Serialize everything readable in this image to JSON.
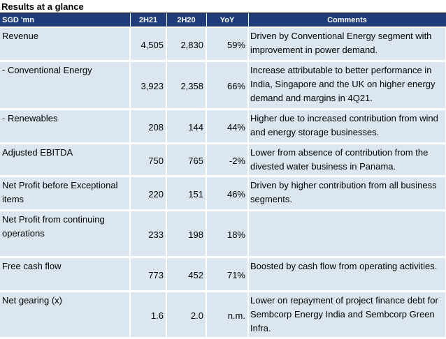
{
  "title": "Results at a glance",
  "headers": [
    "SGD 'mn",
    "2H21",
    "2H20",
    "YoY",
    "Comments"
  ],
  "rows": [
    {
      "metric": "Revenue",
      "v2h21": "4,505",
      "v2h20": "2,830",
      "yoy": "59%",
      "comment": "Driven by Conventional Energy segment with improvement in power demand."
    },
    {
      "metric": " - Conventional Energy",
      "v2h21": "3,923",
      "v2h20": "2,358",
      "yoy": "66%",
      "comment": "Increase attributable to better performance in India, Singapore and the UK on higher energy demand and margins in 4Q21."
    },
    {
      "metric": " - Renewables",
      "v2h21": "208",
      "v2h20": "144",
      "yoy": "44%",
      "comment": "Higher due to increased contribution from wind and energy storage businesses."
    },
    {
      "metric": "Adjusted EBITDA",
      "v2h21": "750",
      "v2h20": "765",
      "yoy": "-2%",
      "comment": "Lower from absence of contribution from the divested water business in Panama."
    },
    {
      "metric": "Net Profit before Exceptional items",
      "v2h21": "220",
      "v2h20": "151",
      "yoy": "46%",
      "comment": "Driven by higher contribution from all business segments."
    },
    {
      "metric": "Net Profit from continuing operations",
      "v2h21": "233",
      "v2h20": "198",
      "yoy": "18%",
      "comment": ""
    },
    {
      "metric": "Free cash flow",
      "v2h21": "773",
      "v2h20": "452",
      "yoy": "71%",
      "comment": "Boosted by cash flow from operating activities."
    },
    {
      "metric": "Net gearing (x)",
      "v2h21": "1.6",
      "v2h20": "2.0",
      "yoy": "n.m.",
      "comment": "Lower on repayment of project finance debt for Sembcorp Energy India and Sembcorp Green Infra."
    }
  ],
  "colors": {
    "header_bg": "#1f3d7a",
    "row_bg": "#dce6f1"
  }
}
